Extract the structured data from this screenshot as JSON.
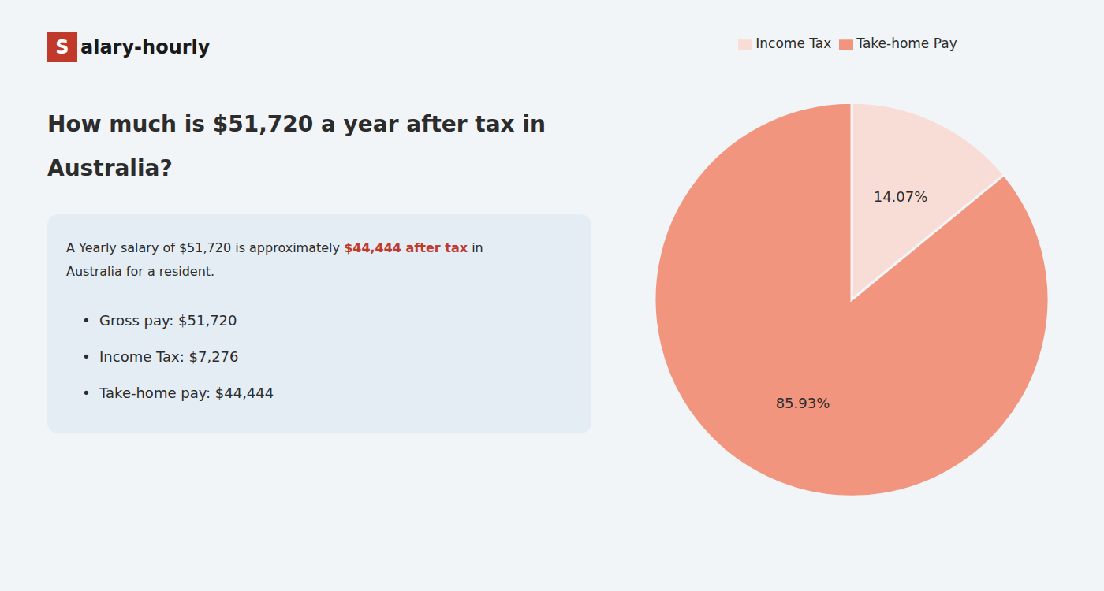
{
  "chart_data": {
    "type": "pie",
    "title": "How much is $51,720 a year after tax in\nAustralia?",
    "categories": [
      "Income Tax",
      "Take-home Pay"
    ],
    "values": [
      14.07,
      85.93
    ],
    "value_labels": [
      "14.07%",
      "85.93%"
    ],
    "colors": [
      "#f7ddd5",
      "#f2957f"
    ],
    "data_labels": true,
    "legend": "top",
    "annotations": [
      "S",
      "alary-hourly",
      "A Yearly salary of $51,720 is approximately ",
      "$44,444 after tax",
      " in",
      "Australia for a resident.",
      "•  Gross pay: $51,720",
      "•  Income Tax: $7,276",
      "•  Take-home pay: $44,444"
    ]
  }
}
